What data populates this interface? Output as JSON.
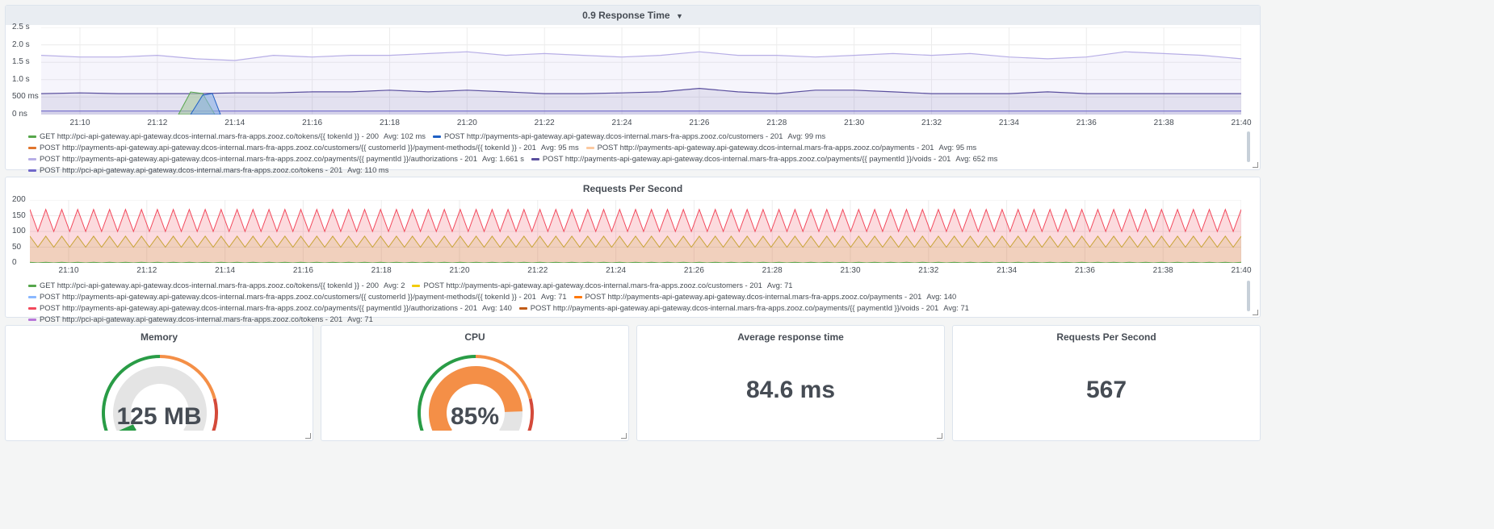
{
  "panels": {
    "response_time": {
      "title": "0.9 Response Time",
      "y_ticks": [
        "2.5 s",
        "2.0 s",
        "1.5 s",
        "1.0 s",
        "500 ms",
        "0 ns"
      ],
      "x_ticks": [
        "21:10",
        "21:12",
        "21:14",
        "21:16",
        "21:18",
        "21:20",
        "21:22",
        "21:24",
        "21:26",
        "21:28",
        "21:30",
        "21:32",
        "21:34",
        "21:36",
        "21:38",
        "21:40"
      ],
      "legend": [
        {
          "label": "GET http://pci-api-gateway.api-gateway.dcos-internal.mars-fra-apps.zooz.co/tokens/{{ tokenId }} - 200",
          "avg": "Avg: 102 ms",
          "color": "#56a64b"
        },
        {
          "label": "POST http://payments-api-gateway.api-gateway.dcos-internal.mars-fra-apps.zooz.co/customers - 201",
          "avg": "Avg: 99 ms",
          "color": "#1f60c4"
        },
        {
          "label": "POST http://payments-api-gateway.api-gateway.dcos-internal.mars-fra-apps.zooz.co/customers/{{ customerId }}/payment-methods/{{ tokenId }} - 201",
          "avg": "Avg: 95 ms",
          "color": "#e0752d"
        },
        {
          "label": "POST http://payments-api-gateway.api-gateway.dcos-internal.mars-fra-apps.zooz.co/payments - 201",
          "avg": "Avg: 95 ms",
          "color": "#fcc9a0"
        },
        {
          "label": "POST http://payments-api-gateway.api-gateway.dcos-internal.mars-fra-apps.zooz.co/payments/{{ paymentId }}/authorizations - 201",
          "avg": "Avg: 1.661 s",
          "color": "#b7aee6"
        },
        {
          "label": "POST http://payments-api-gateway.api-gateway.dcos-internal.mars-fra-apps.zooz.co/payments/{{ paymentId }}/voids - 201",
          "avg": "Avg: 652 ms",
          "color": "#5a4f9e"
        },
        {
          "label": "POST http://pci-api-gateway.api-gateway.dcos-internal.mars-fra-apps.zooz.co/tokens - 201",
          "avg": "Avg: 110 ms",
          "color": "#7068c9"
        }
      ],
      "chart_data": {
        "type": "line",
        "ylim": [
          0,
          2.5
        ],
        "y_unit": "s",
        "x": [
          "21:09",
          "21:10",
          "21:11",
          "21:12",
          "21:13",
          "21:14",
          "21:15",
          "21:16",
          "21:17",
          "21:18",
          "21:19",
          "21:20",
          "21:21",
          "21:22",
          "21:23",
          "21:24",
          "21:25",
          "21:26",
          "21:27",
          "21:28",
          "21:29",
          "21:30",
          "21:31",
          "21:32",
          "21:33",
          "21:34",
          "21:35",
          "21:36",
          "21:37",
          "21:38",
          "21:39",
          "21:40"
        ],
        "series": [
          {
            "values": [
              1.7,
              1.65,
              1.65,
              1.7,
              1.6,
              1.55,
              1.7,
              1.65,
              1.7,
              1.7,
              1.75,
              1.8,
              1.7,
              1.75,
              1.7,
              1.65,
              1.7,
              1.8,
              1.7,
              1.7,
              1.65,
              1.7,
              1.75,
              1.7,
              1.75,
              1.65,
              1.6,
              1.65,
              1.8,
              1.75,
              1.7,
              1.6
            ],
            "color": "#b7aee6"
          },
          {
            "values": [
              0.6,
              0.62,
              0.6,
              0.6,
              0.6,
              0.62,
              0.62,
              0.65,
              0.65,
              0.7,
              0.65,
              0.7,
              0.65,
              0.6,
              0.6,
              0.62,
              0.65,
              0.75,
              0.65,
              0.6,
              0.7,
              0.7,
              0.65,
              0.6,
              0.6,
              0.6,
              0.65,
              0.6,
              0.6,
              0.6,
              0.6,
              0.6
            ],
            "color": "#5a4f9e"
          },
          {
            "values": [
              0.1,
              0.1,
              0.1,
              0.1,
              0.1,
              0.1,
              0.1,
              0.1,
              0.1,
              0.1,
              0.1,
              0.1,
              0.1,
              0.1,
              0.1,
              0.1,
              0.1,
              0.1,
              0.1,
              0.1,
              0.1,
              0.1,
              0.1,
              0.1,
              0.1,
              0.1,
              0.1,
              0.1,
              0.1,
              0.1,
              0.1,
              0.1
            ],
            "color": "#7068c9"
          }
        ]
      }
    },
    "rps_chart": {
      "title": "Requests Per Second",
      "y_ticks": [
        "200",
        "150",
        "100",
        "50",
        "0"
      ],
      "x_ticks": [
        "21:10",
        "21:12",
        "21:14",
        "21:16",
        "21:18",
        "21:20",
        "21:22",
        "21:24",
        "21:26",
        "21:28",
        "21:30",
        "21:32",
        "21:34",
        "21:36",
        "21:38",
        "21:40"
      ],
      "legend": [
        {
          "label": "GET http://pci-api-gateway.api-gateway.dcos-internal.mars-fra-apps.zooz.co/tokens/{{ tokenId }} - 200",
          "avg": "Avg: 2",
          "color": "#56a64b"
        },
        {
          "label": "POST http://payments-api-gateway.api-gateway.dcos-internal.mars-fra-apps.zooz.co/customers - 201",
          "avg": "Avg: 71",
          "color": "#f2cc0c"
        },
        {
          "label": "POST http://payments-api-gateway.api-gateway.dcos-internal.mars-fra-apps.zooz.co/customers/{{ customerId }}/payment-methods/{{ tokenId }} - 201",
          "avg": "Avg: 71",
          "color": "#8ab8ff"
        },
        {
          "label": "POST http://payments-api-gateway.api-gateway.dcos-internal.mars-fra-apps.zooz.co/payments - 201",
          "avg": "Avg: 140",
          "color": "#ff780a"
        },
        {
          "label": "POST http://payments-api-gateway.api-gateway.dcos-internal.mars-fra-apps.zooz.co/payments/{{ paymentId }}/authorizations - 201",
          "avg": "Avg: 140",
          "color": "#f2495c"
        },
        {
          "label": "POST http://payments-api-gateway.api-gateway.dcos-internal.mars-fra-apps.zooz.co/payments/{{ paymentId }}/voids - 201",
          "avg": "Avg: 71",
          "color": "#c15c17"
        },
        {
          "label": "POST http://pci-api-gateway.api-gateway.dcos-internal.mars-fra-apps.zooz.co/tokens - 201",
          "avg": "Avg: 71",
          "color": "#b877d9"
        }
      ],
      "chart_data": {
        "type": "area",
        "ylim": [
          0,
          200
        ],
        "series": [
          {
            "amplitude_high": 170,
            "amplitude_low": 100,
            "color": "#f2495c"
          },
          {
            "amplitude_high": 85,
            "amplitude_low": 50,
            "color": "#c9a53a"
          },
          {
            "amplitude_high": 2,
            "amplitude_low": 0,
            "color": "#56a64b"
          }
        ]
      }
    },
    "memory": {
      "title": "Memory",
      "value": "125 MB",
      "fraction": 0.05
    },
    "cpu": {
      "title": "CPU",
      "value": "85%",
      "fraction": 0.85
    },
    "avg_response": {
      "title": "Average response time",
      "value": "84.6 ms"
    },
    "rps_stat": {
      "title": "Requests Per Second",
      "value": "567"
    }
  },
  "colors": {
    "green": "#299c46",
    "orange": "#f48f47",
    "red": "#d44a3a",
    "gauge_bg": "#e4e4e4"
  }
}
